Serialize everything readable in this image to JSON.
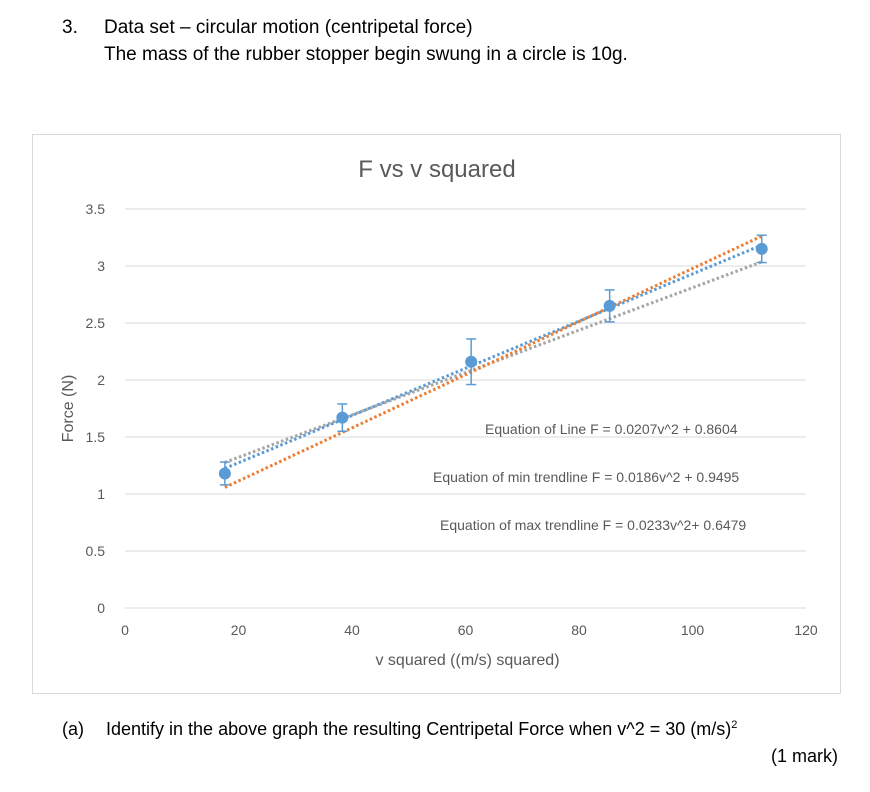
{
  "header": {
    "number": "3.",
    "line1": "Data set – circular motion (centripetal force)",
    "line2": "The mass of the rubber stopper begin swung in a circle is 10g."
  },
  "colors": {
    "data_series": "#5b9bd5",
    "trend_main": "#5b9bd5",
    "trend_min": "#a5a5a5",
    "trend_max": "#ed7d31",
    "gridline": "#d9d9d9",
    "tick_label": "#595959",
    "title": "#595959"
  },
  "chart_data": {
    "type": "scatter",
    "title": "F vs v squared",
    "xlabel": "v squared ((m/s) squared)",
    "ylabel": "Force (N)",
    "xlim": [
      0,
      120
    ],
    "ylim": [
      0,
      3.5
    ],
    "xticks": [
      "0",
      "20",
      "40",
      "60",
      "80",
      "100",
      "120"
    ],
    "xtick_values": [
      0,
      20,
      40,
      60,
      80,
      100,
      120
    ],
    "yticks": [
      "0",
      "0.5",
      "1",
      "1.5",
      "2",
      "2.5",
      "3",
      "3.5"
    ],
    "ytick_values": [
      0,
      0.5,
      1,
      1.5,
      2,
      2.5,
      3,
      3.5
    ],
    "grid": "horizontal",
    "series": [
      {
        "x": [
          17.6,
          38.3,
          61.0,
          85.4,
          112.2
        ],
        "y": [
          1.18,
          1.67,
          2.16,
          2.65,
          3.15
        ],
        "error_y": [
          0.1,
          0.12,
          0.2,
          0.14,
          0.12
        ]
      }
    ],
    "trendlines": [
      {
        "kind": "main",
        "slope": 0.0207,
        "intercept": 0.8604,
        "x_range": [
          17.6,
          112.2
        ]
      },
      {
        "kind": "min",
        "slope": 0.0186,
        "intercept": 0.9495,
        "x_range": [
          17.6,
          112.2
        ]
      },
      {
        "kind": "max",
        "slope": 0.0233,
        "intercept": 0.6479,
        "x_range": [
          17.6,
          112.2
        ]
      }
    ],
    "annotations": [
      "Equation of Line F = 0.0207v^2 + 0.8604",
      "Equation of min trendline F = 0.0186v^2 + 0.9495",
      "Equation of max trendline F = 0.0233v^2+ 0.6479"
    ]
  },
  "question_a": {
    "label": "(a)",
    "text": "Identify in the above graph the resulting Centripetal Force when v^2 = 30 (m/s)",
    "superscript": "2",
    "marks": "(1 mark)"
  }
}
